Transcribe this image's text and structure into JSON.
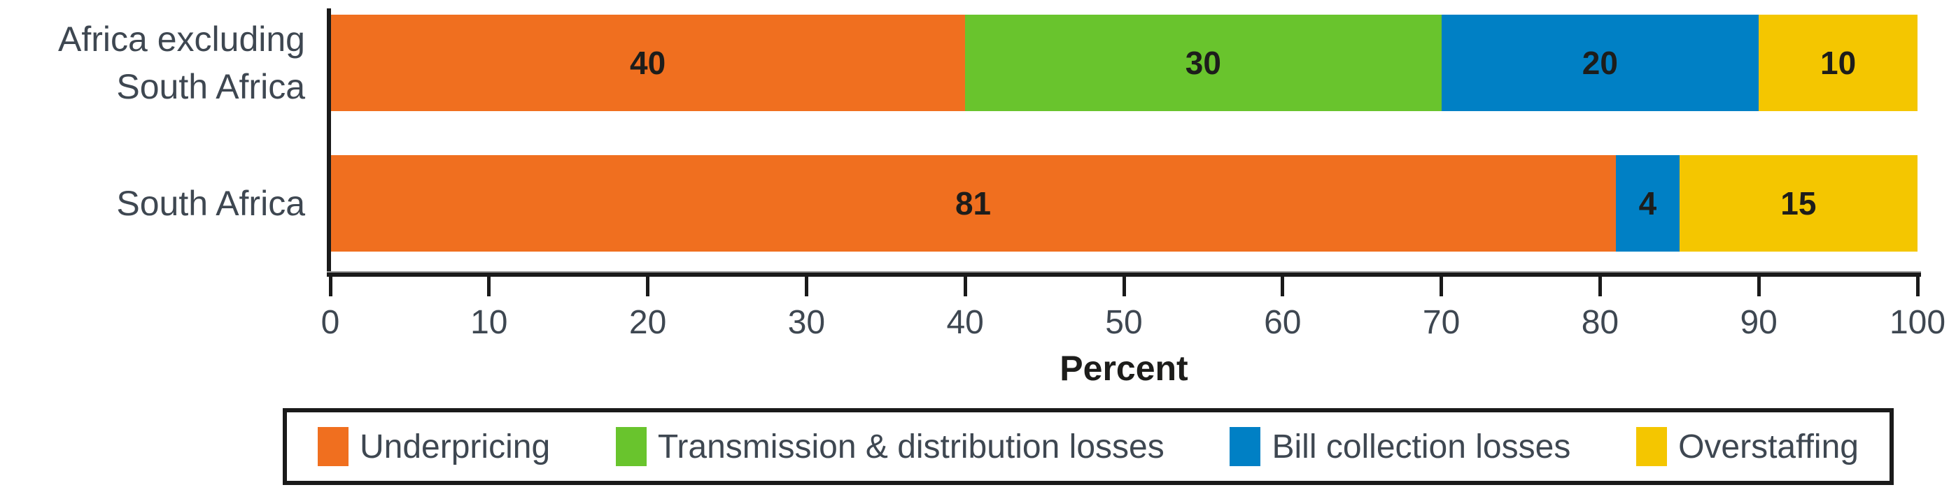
{
  "chart_data": {
    "type": "bar",
    "orientation": "horizontal",
    "stacked": true,
    "categories": [
      "Africa excluding South Africa",
      "South Africa"
    ],
    "series": [
      {
        "name": "Underpricing",
        "color": "#F06F1F",
        "values": [
          40,
          81
        ]
      },
      {
        "name": "Transmission & distribution losses",
        "color": "#69C42D",
        "values": [
          30,
          0
        ]
      },
      {
        "name": "Bill collection losses",
        "color": "#0080C5",
        "values": [
          20,
          4
        ]
      },
      {
        "name": "Overstaffing",
        "color": "#F4C600",
        "values": [
          10,
          15
        ]
      }
    ],
    "xlabel": "Percent",
    "xlim": [
      0,
      100
    ],
    "xticks": [
      0,
      10,
      20,
      30,
      40,
      50,
      60,
      70,
      80,
      90,
      100
    ],
    "grid": false,
    "legend_position": "bottom-boxed",
    "bar_value_labels": true
  },
  "colors": {
    "text": "#3E4751",
    "axis": "#1A1A1A",
    "value_label": "#1D1D1B"
  }
}
